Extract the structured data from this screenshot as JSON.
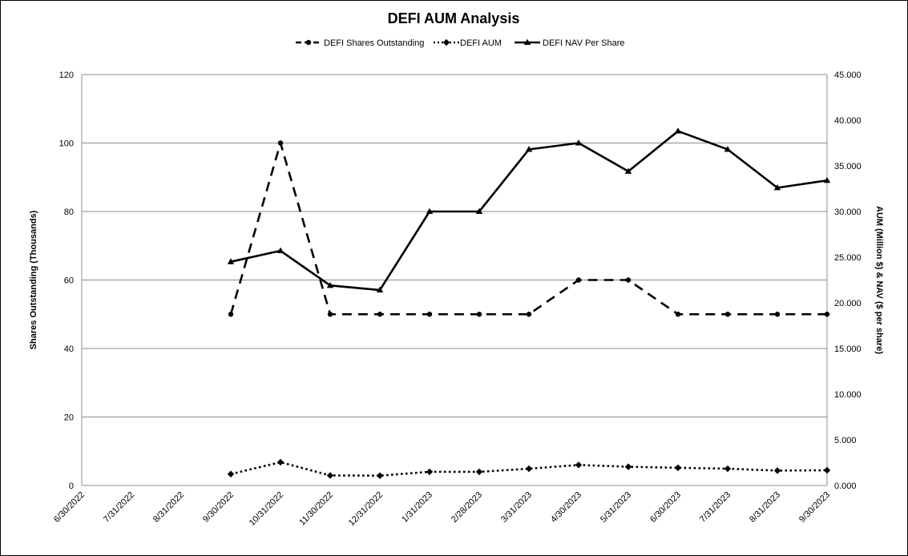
{
  "chart_data": {
    "type": "line",
    "title": "DEFI AUM Analysis",
    "categories": [
      "6/30/2022",
      "7/31/2022",
      "8/31/2022",
      "9/30/2022",
      "10/31/2022",
      "11/30/2022",
      "12/31/2022",
      "1/31/2023",
      "2/28/2023",
      "3/31/2023",
      "4/30/2023",
      "5/31/2023",
      "6/30/2023",
      "7/31/2023",
      "8/31/2023",
      "9/30/2023"
    ],
    "ylabel_left": "Shares Outstanding (Thousands)",
    "ylabel_right": "AUM (Million $) & NAV ($ per share)",
    "ylim_left": [
      0,
      120
    ],
    "left_ticks": [
      "0",
      "20",
      "40",
      "60",
      "80",
      "100",
      "120"
    ],
    "ylim_right": [
      0,
      45
    ],
    "right_ticks": [
      "0.000",
      "5.000",
      "10.000",
      "15.000",
      "20.000",
      "25.000",
      "30.000",
      "35.000",
      "40.000",
      "45.000"
    ],
    "grid": "horizontal",
    "legend_position": "top-center",
    "series": [
      {
        "name": "DEFI Shares Outstanding",
        "axis": "left",
        "style": "dashed",
        "marker": "circle",
        "values": [
          null,
          null,
          null,
          50,
          100,
          50,
          50,
          50,
          50,
          50,
          60,
          60,
          50,
          50,
          50,
          50
        ]
      },
      {
        "name": "DEFI AUM",
        "axis": "right",
        "style": "dotted",
        "marker": "diamond",
        "values": [
          null,
          null,
          null,
          1.25,
          2.55,
          1.1,
          1.08,
          1.5,
          1.5,
          1.84,
          2.25,
          2.05,
          1.94,
          1.84,
          1.63,
          1.67
        ]
      },
      {
        "name": "DEFI NAV Per Share",
        "axis": "right",
        "style": "solid",
        "marker": "triangle",
        "values": [
          null,
          null,
          null,
          24.5,
          25.7,
          21.9,
          21.4,
          30.0,
          30.0,
          36.8,
          37.5,
          34.4,
          38.8,
          36.8,
          32.6,
          33.4
        ]
      }
    ]
  }
}
